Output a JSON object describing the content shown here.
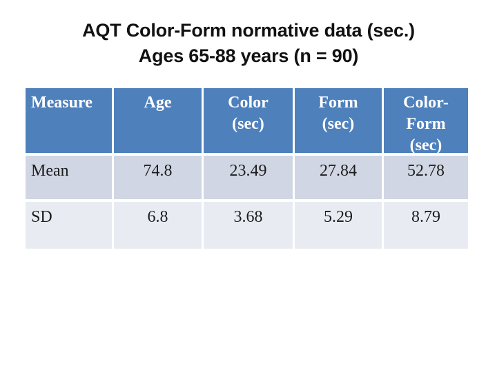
{
  "slide": {
    "title_line1": "AQT Color-Form normative data (sec.)",
    "title_line2": "Ages 65-88 years (n = 90)",
    "title_color": "#111111",
    "background": "#ffffff"
  },
  "table": {
    "headers": [
      {
        "lines": [
          "Measure"
        ]
      },
      {
        "lines": [
          "Age"
        ]
      },
      {
        "lines": [
          "Color",
          "(sec)"
        ]
      },
      {
        "lines": [
          "Form",
          "(sec)"
        ]
      },
      {
        "lines": [
          "Color-",
          "Form",
          "(sec)"
        ]
      }
    ],
    "rows": [
      {
        "label": "Mean",
        "values": [
          "74.8",
          "23.49",
          "27.84",
          "52.78"
        ]
      },
      {
        "label": "SD",
        "values": [
          "6.8",
          "3.68",
          "5.29",
          "8.79"
        ]
      }
    ],
    "colors": {
      "header_bg": "#4e80bc",
      "header_text": "#ffffff",
      "band_odd": "#d0d6e3",
      "band_even": "#e9ebf3",
      "gridline": "#ffffff",
      "body_text": "#1c1c1c"
    }
  },
  "chart_data": {
    "type": "table",
    "title": "AQT Color-Form normative data (sec.) Ages 65-88 years (n = 90)",
    "columns": [
      "Measure",
      "Age",
      "Color (sec)",
      "Form (sec)",
      "Color-Form (sec)"
    ],
    "rows": [
      [
        "Mean",
        74.8,
        23.49,
        27.84,
        52.78
      ],
      [
        "SD",
        6.8,
        3.68,
        5.29,
        8.79
      ]
    ]
  }
}
